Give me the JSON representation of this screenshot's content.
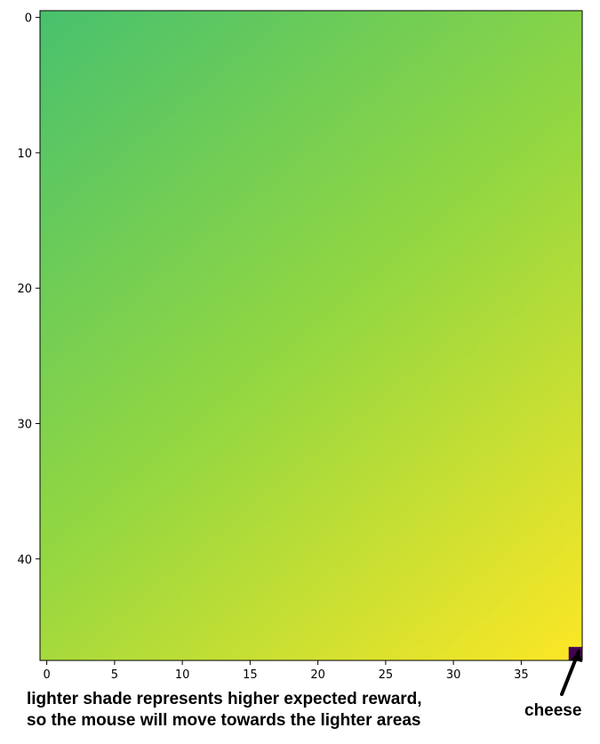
{
  "chart_data": {
    "type": "heatmap",
    "title": "",
    "xlabel": "",
    "ylabel": "",
    "grid_columns": 40,
    "grid_rows": 48,
    "xlim": [
      -0.5,
      39.5
    ],
    "ylim": [
      47.5,
      -0.5
    ],
    "y_axis_inverted": true,
    "x_ticks": [
      0,
      5,
      10,
      15,
      20,
      25,
      30,
      35
    ],
    "x_tick_labels": [
      "0",
      "5",
      "10",
      "15",
      "20",
      "25",
      "30",
      "35"
    ],
    "y_ticks": [
      0,
      10,
      20,
      30,
      40
    ],
    "y_tick_labels": [
      "0",
      "10",
      "20",
      "30",
      "40"
    ],
    "colormap": "viridis",
    "value_trend": "increases diagonally from top-left (greenish teal) to bottom-right (bright yellow)",
    "corner_colors": {
      "top_left": "#48c16e",
      "top_right": "#93d741",
      "bottom_left": "#93d741",
      "bottom_right": "#fde725"
    },
    "special_cells": [
      {
        "x": 39,
        "y": 47,
        "color": "#440154"
      }
    ],
    "grid": false,
    "colorbar": false
  },
  "annotations": {
    "caption_line1": "lighter shade represents higher expected reward,",
    "caption_line2": "so the mouse will move towards the lighter areas",
    "cheese_label": "cheese"
  },
  "colors": {
    "axis": "#000000",
    "arrow": "#000000"
  }
}
